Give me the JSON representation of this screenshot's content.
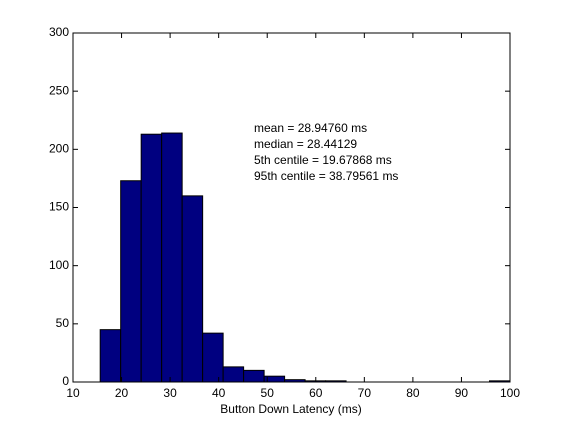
{
  "chart_data": {
    "type": "histogram",
    "xlabel": "Button Down Latency (ms)",
    "bins": [
      15.6,
      19.82,
      24.04,
      28.26,
      32.48,
      36.7,
      40.92,
      45.14,
      49.36,
      53.58,
      57.8,
      62.02,
      66.24,
      70.46,
      74.68,
      78.9,
      83.12,
      87.34,
      91.56,
      95.78,
      100
    ],
    "values": [
      45,
      173,
      213,
      214,
      160,
      42,
      13,
      10,
      5,
      2,
      1,
      1,
      0,
      0,
      0,
      0,
      0,
      0,
      0,
      1
    ],
    "color": "#000080",
    "xlim": [
      10,
      100
    ],
    "xticks": [
      10,
      20,
      30,
      40,
      50,
      60,
      70,
      80,
      90,
      100
    ],
    "ylim": [
      0,
      300
    ],
    "yticks": [
      0,
      50,
      100,
      150,
      200,
      250,
      300
    ],
    "annotations": [
      "mean = 28.94760 ms",
      "median = 28.44129",
      "5th centile = 19.67868 ms",
      "95th centile = 38.79561 ms"
    ]
  }
}
